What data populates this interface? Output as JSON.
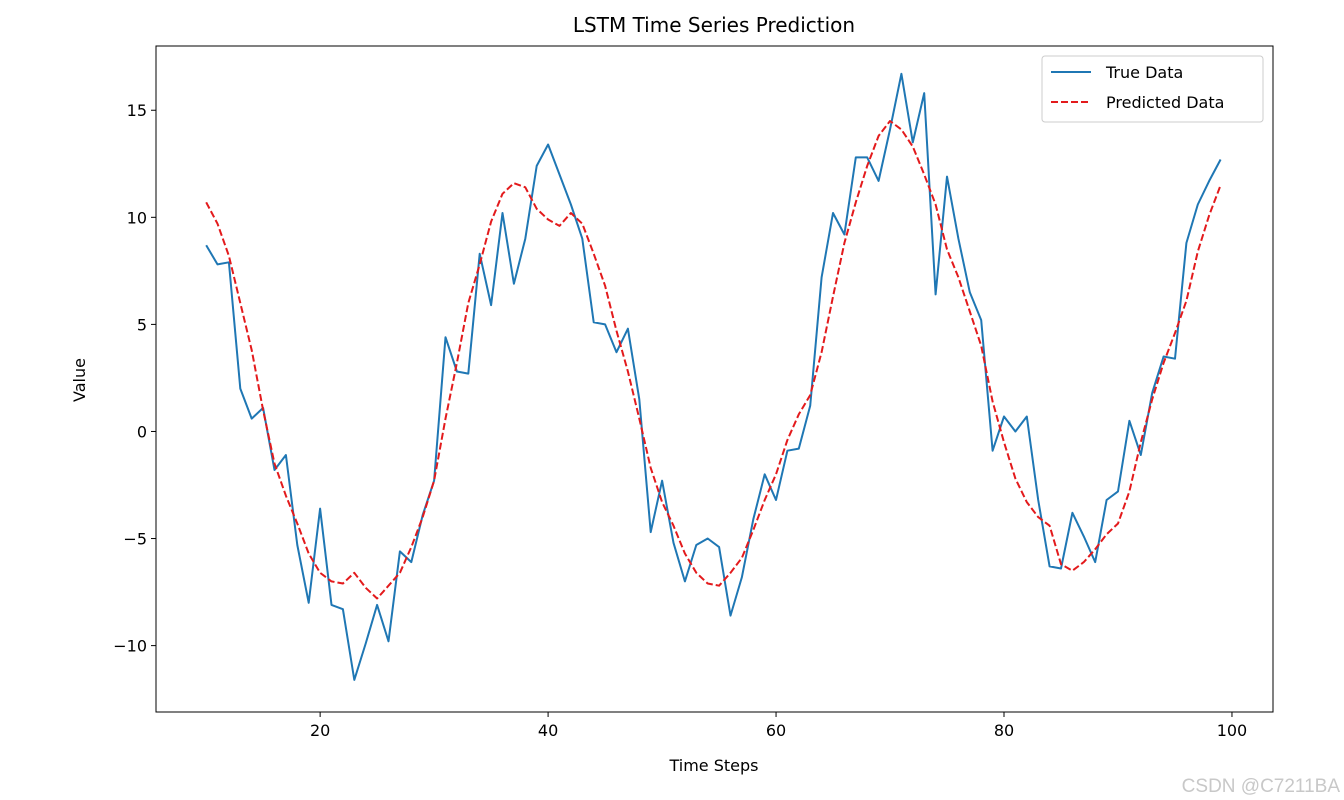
{
  "chart_data": {
    "type": "line",
    "title": "LSTM Time Series Prediction",
    "xlabel": "Time Steps",
    "ylabel": "Value",
    "xlim": [
      5.6,
      103.6
    ],
    "ylim": [
      -13.1,
      18.0
    ],
    "xticks": [
      20,
      40,
      60,
      80,
      100
    ],
    "yticks": [
      -10,
      -5,
      0,
      5,
      10,
      15
    ],
    "ytick_labels": [
      "−10",
      "−5",
      "0",
      "5",
      "10",
      "15"
    ],
    "grid": false,
    "legend_position": "top-right",
    "x": [
      10,
      11,
      12,
      13,
      14,
      15,
      16,
      17,
      18,
      19,
      20,
      21,
      22,
      23,
      24,
      25,
      26,
      27,
      28,
      29,
      30,
      31,
      32,
      33,
      34,
      35,
      36,
      37,
      38,
      39,
      40,
      41,
      42,
      43,
      44,
      45,
      46,
      47,
      48,
      49,
      50,
      51,
      52,
      53,
      54,
      55,
      56,
      57,
      58,
      59,
      60,
      61,
      62,
      63,
      64,
      65,
      66,
      67,
      68,
      69,
      70,
      71,
      72,
      73,
      74,
      75,
      76,
      77,
      78,
      79,
      80,
      81,
      82,
      83,
      84,
      85,
      86,
      87,
      88,
      89,
      90,
      91,
      92,
      93,
      94,
      95,
      96,
      97,
      98,
      99
    ],
    "series": [
      {
        "name": "True Data",
        "color": "#1f77b4",
        "style": "solid",
        "values": [
          8.7,
          7.8,
          7.9,
          2.0,
          0.6,
          1.1,
          -1.8,
          -1.1,
          -5.3,
          -8.0,
          -3.6,
          -8.1,
          -8.3,
          -11.6,
          -9.9,
          -8.1,
          -9.8,
          -5.6,
          -6.1,
          -3.9,
          -2.3,
          4.4,
          2.8,
          2.7,
          8.3,
          5.9,
          10.2,
          6.9,
          9.0,
          12.4,
          13.4,
          12.0,
          10.6,
          9.0,
          5.1,
          5.0,
          3.7,
          4.8,
          1.5,
          -4.7,
          -2.3,
          -5.2,
          -7.0,
          -5.3,
          -5.0,
          -5.4,
          -8.6,
          -6.8,
          -4.1,
          -2.0,
          -3.2,
          -0.9,
          -0.8,
          1.2,
          7.2,
          10.2,
          9.2,
          12.8,
          12.8,
          11.7,
          14.1,
          16.7,
          13.5,
          15.8,
          6.4,
          11.9,
          9.0,
          6.5,
          5.2,
          -0.9,
          0.7,
          0.0,
          0.7,
          -3.2,
          -6.3,
          -6.4,
          -3.8,
          -4.9,
          -6.1,
          -3.2,
          -2.8,
          0.5,
          -1.1,
          1.8,
          3.5,
          3.4,
          8.8,
          10.6,
          11.7,
          12.7
        ]
      },
      {
        "name": "Predicted Data",
        "color": "#e31a1c",
        "style": "dashed",
        "values": [
          10.7,
          9.7,
          8.2,
          6.0,
          3.8,
          1.0,
          -1.5,
          -3.0,
          -4.3,
          -5.7,
          -6.6,
          -7.0,
          -7.1,
          -6.6,
          -7.3,
          -7.8,
          -7.2,
          -6.6,
          -5.4,
          -4.0,
          -2.3,
          0.6,
          3.2,
          6.0,
          7.8,
          9.8,
          11.1,
          11.6,
          11.4,
          10.4,
          9.9,
          9.6,
          10.2,
          9.7,
          8.3,
          6.8,
          4.7,
          2.8,
          0.6,
          -1.7,
          -3.3,
          -4.4,
          -5.7,
          -6.6,
          -7.1,
          -7.2,
          -6.6,
          -5.9,
          -4.6,
          -3.2,
          -2.0,
          -0.4,
          0.8,
          1.7,
          3.7,
          6.3,
          8.8,
          10.7,
          12.4,
          13.8,
          14.5,
          14.1,
          13.3,
          12.0,
          10.6,
          8.5,
          7.2,
          5.6,
          4.0,
          1.4,
          -0.5,
          -2.2,
          -3.3,
          -4.0,
          -4.4,
          -6.2,
          -6.5,
          -6.1,
          -5.5,
          -4.8,
          -4.3,
          -2.8,
          -0.5,
          1.5,
          3.2,
          4.6,
          6.1,
          8.4,
          10.1,
          11.5
        ]
      }
    ]
  },
  "watermark": "CSDN @C7211BA"
}
